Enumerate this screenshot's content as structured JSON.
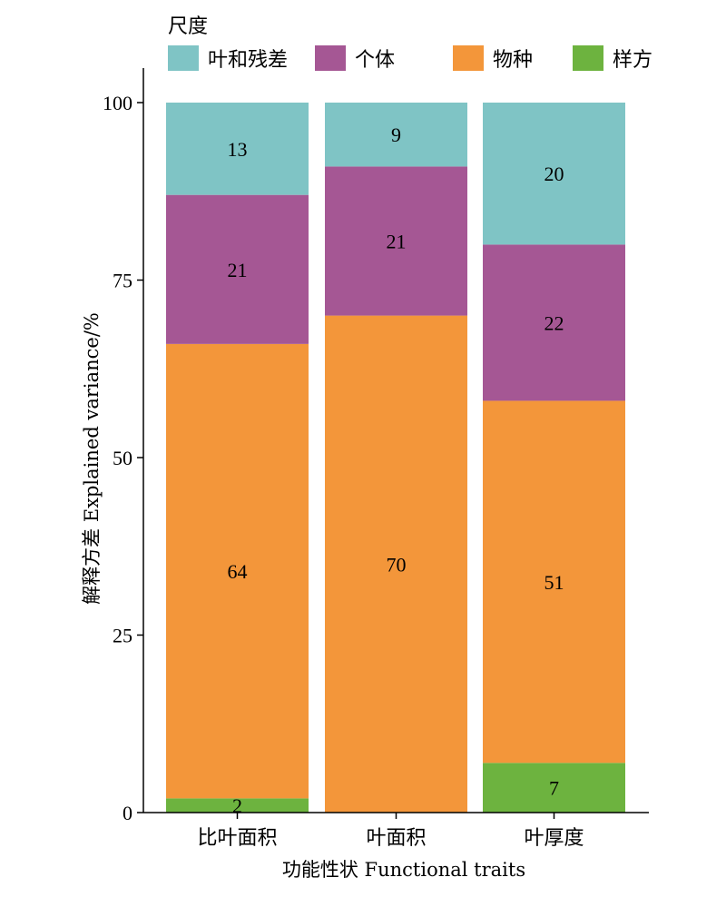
{
  "chart_data": {
    "type": "bar",
    "stacked": true,
    "categories": [
      "比叶面积",
      "叶面积",
      "叶厚度"
    ],
    "series": [
      {
        "name": "样方",
        "color": "#6db33f",
        "values": [
          2,
          0,
          7
        ]
      },
      {
        "name": "物种",
        "color": "#f3963a",
        "values": [
          64,
          70,
          51
        ]
      },
      {
        "name": "个体",
        "color": "#a55794",
        "values": [
          21,
          21,
          22
        ]
      },
      {
        "name": "叶和残差",
        "color": "#7fc4c5",
        "values": [
          13,
          9,
          20
        ]
      }
    ],
    "legend": {
      "title": "尺度",
      "placement": "top",
      "order": [
        "叶和残差",
        "个体",
        "物种",
        "样方"
      ]
    },
    "xlabel": "功能性状 Functional traits",
    "ylabel": "解释方差 Explained variance/%",
    "ylim": [
      0,
      100
    ],
    "yticks": [
      0,
      25,
      50,
      75,
      100
    ],
    "grid": false
  }
}
